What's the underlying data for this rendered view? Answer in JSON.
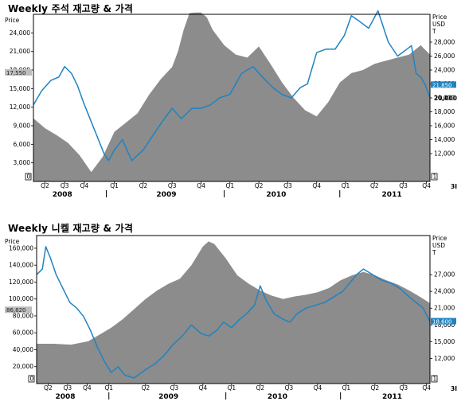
{
  "chart_data": [
    {
      "type": "area",
      "title": "Weekly 주석 재고량 & 가격",
      "left_axis_title": "Price",
      "right_axis_title": [
        "Price",
        "USD",
        "T"
      ],
      "left_ylim": [
        0,
        27000
      ],
      "left_ticks": [
        "3,000",
        "6,000",
        "9,000",
        "12,000",
        "15,000",
        "18,000",
        "21,000",
        "24,000"
      ],
      "left_tick_values": [
        3000,
        6000,
        9000,
        12000,
        15000,
        18000,
        21000,
        24000
      ],
      "right_ylim": [
        8000,
        32000
      ],
      "right_ticks": [
        "12,000",
        "14,000",
        "16,000",
        "18,000",
        "20,000",
        "22,000",
        "24,000",
        "26,000",
        "28,000"
      ],
      "right_tick_values": [
        12000,
        14000,
        16000,
        18000,
        20000,
        22000,
        24000,
        26000,
        28000
      ],
      "x_range": [
        2008.35,
        2011.78
      ],
      "quarter_ticks": [
        "Q2",
        "Q3",
        "Q4",
        "Q1",
        "Q2",
        "Q3",
        "Q4",
        "Q1",
        "Q2",
        "Q3",
        "Q4",
        "Q1",
        "Q2",
        "Q3",
        "Q4"
      ],
      "quarter_values": [
        2008.45,
        2008.62,
        2008.79,
        2009.05,
        2009.3,
        2009.55,
        2009.8,
        2010.05,
        2010.3,
        2010.55,
        2010.8,
        2011.05,
        2011.3,
        2011.55,
        2011.75
      ],
      "years": [
        "2008",
        "2009",
        "2010",
        "2011"
      ],
      "year_label_values": [
        2008.6,
        2009.5,
        2010.45,
        2011.45
      ],
      "year_divider_values": [
        2008.98,
        2010.0,
        2011.0
      ],
      "left_marker": "17,550",
      "left_marker_value": 17550,
      "right_marker": "21,850",
      "right_marker_value": 21850,
      "right_marker2": "20,000",
      "right_marker2_value": 20000,
      "stock_area": {
        "axis": "left",
        "color": "#8c8c8c",
        "x": [
          2008.35,
          2008.45,
          2008.55,
          2008.65,
          2008.75,
          2008.85,
          2008.95,
          2009.05,
          2009.15,
          2009.25,
          2009.35,
          2009.45,
          2009.55,
          2009.6,
          2009.65,
          2009.7,
          2009.75,
          2009.8,
          2009.85,
          2009.9,
          2010.0,
          2010.1,
          2010.2,
          2010.3,
          2010.4,
          2010.5,
          2010.6,
          2010.7,
          2010.8,
          2010.9,
          2011.0,
          2011.1,
          2011.2,
          2011.3,
          2011.4,
          2011.5,
          2011.6,
          2011.7,
          2011.78
        ],
        "values": [
          10200,
          8600,
          7500,
          6200,
          4200,
          1500,
          4000,
          8000,
          9500,
          11000,
          14000,
          16500,
          18500,
          21000,
          24500,
          27200,
          27300,
          27300,
          26500,
          24500,
          22000,
          20500,
          20000,
          21800,
          19000,
          16000,
          13500,
          11500,
          10500,
          12800,
          16000,
          17500,
          18000,
          19000,
          19500,
          20000,
          20500,
          22000,
          20500
        ]
      },
      "price_line": {
        "axis": "right",
        "color": "#1f83c2",
        "x": [
          2008.35,
          2008.42,
          2008.5,
          2008.57,
          2008.62,
          2008.68,
          2008.73,
          2008.78,
          2008.84,
          2008.9,
          2008.96,
          2009.0,
          2009.05,
          2009.12,
          2009.2,
          2009.3,
          2009.38,
          2009.46,
          2009.55,
          2009.63,
          2009.72,
          2009.8,
          2009.88,
          2009.96,
          2010.05,
          2010.15,
          2010.25,
          2010.33,
          2010.42,
          2010.5,
          2010.58,
          2010.66,
          2010.72,
          2010.8,
          2010.88,
          2010.96,
          2011.04,
          2011.1,
          2011.17,
          2011.25,
          2011.33,
          2011.42,
          2011.5,
          2011.58,
          2011.62,
          2011.66,
          2011.7,
          2011.74,
          2011.78
        ],
        "values": [
          19000,
          21000,
          22500,
          23000,
          24500,
          23500,
          21800,
          19500,
          17000,
          14500,
          12000,
          11000,
          12500,
          14000,
          11000,
          12500,
          14500,
          16500,
          18500,
          17000,
          18500,
          18500,
          19000,
          20000,
          20500,
          23500,
          24500,
          23000,
          21500,
          20500,
          20000,
          21500,
          22000,
          26500,
          27000,
          27000,
          29000,
          31800,
          31000,
          30000,
          32500,
          28000,
          26000,
          27000,
          27500,
          23500,
          23000,
          21850,
          20000
        ]
      }
    },
    {
      "type": "area",
      "title": "Weekly 니켈 재고량 & 가격",
      "left_axis_title": "Price",
      "right_axis_title": [
        "Price",
        "USD",
        "T"
      ],
      "left_ylim": [
        0,
        175000
      ],
      "left_ticks": [
        "20,000",
        "40,000",
        "60,000",
        "80,000",
        "100,000",
        "120,000",
        "140,000",
        "160,000"
      ],
      "left_tick_values": [
        20000,
        40000,
        60000,
        80000,
        100000,
        120000,
        140000,
        160000
      ],
      "right_ylim": [
        7500,
        34000
      ],
      "right_ticks": [
        "12,000",
        "15,000",
        "18,000",
        "21,000",
        "24,000",
        "27,000"
      ],
      "right_tick_values": [
        12000,
        15000,
        18000,
        21000,
        24000,
        27000
      ],
      "x_range": [
        2008.35,
        2011.78
      ],
      "quarter_ticks": [
        "Q2",
        "Q3",
        "Q4",
        "Q1",
        "Q2",
        "Q3",
        "Q4",
        "Q1",
        "Q2",
        "Q3",
        "Q4",
        "Q1",
        "Q2",
        "Q3",
        "Q4"
      ],
      "quarter_values": [
        2008.45,
        2008.62,
        2008.79,
        2008.98,
        2009.3,
        2009.55,
        2009.8,
        2010.05,
        2010.3,
        2010.55,
        2010.8,
        2011.05,
        2011.3,
        2011.55,
        2011.75
      ],
      "years": [
        "2008",
        "2009",
        "2010",
        "2011"
      ],
      "year_label_values": [
        2008.6,
        2009.5,
        2010.45,
        2011.45
      ],
      "year_divider_values": [
        2008.98,
        2010.0,
        2011.0
      ],
      "left_marker": "86,820",
      "left_marker_value": 86820,
      "right_marker": "18,600",
      "right_marker_value": 18600,
      "stock_area": {
        "axis": "left",
        "color": "#8c8c8c",
        "x": [
          2008.35,
          2008.5,
          2008.65,
          2008.8,
          2008.9,
          2009.0,
          2009.1,
          2009.2,
          2009.3,
          2009.4,
          2009.5,
          2009.6,
          2009.7,
          2009.8,
          2009.85,
          2009.9,
          2010.0,
          2010.1,
          2010.2,
          2010.3,
          2010.4,
          2010.5,
          2010.6,
          2010.7,
          2010.8,
          2010.9,
          2011.0,
          2011.1,
          2011.2,
          2011.3,
          2011.4,
          2011.5,
          2011.6,
          2011.7,
          2011.78
        ],
        "values": [
          47000,
          47000,
          46000,
          50000,
          58000,
          66000,
          76000,
          88000,
          100000,
          110000,
          118000,
          124000,
          140000,
          162000,
          168000,
          165000,
          148000,
          128000,
          118000,
          110000,
          104000,
          100000,
          103000,
          105000,
          108000,
          113000,
          122000,
          128000,
          132000,
          128000,
          122000,
          117000,
          110000,
          102000,
          95000
        ]
      },
      "price_line": {
        "axis": "right",
        "color": "#1f83c2",
        "x": [
          2008.35,
          2008.4,
          2008.43,
          2008.47,
          2008.52,
          2008.58,
          2008.64,
          2008.7,
          2008.76,
          2008.82,
          2008.88,
          2008.94,
          2009.0,
          2009.06,
          2009.12,
          2009.2,
          2009.3,
          2009.38,
          2009.46,
          2009.54,
          2009.62,
          2009.7,
          2009.78,
          2009.85,
          2009.92,
          2009.98,
          2010.05,
          2010.12,
          2010.18,
          2010.25,
          2010.3,
          2010.35,
          2010.42,
          2010.5,
          2010.56,
          2010.62,
          2010.7,
          2010.78,
          2010.86,
          2010.94,
          2011.02,
          2011.08,
          2011.14,
          2011.2,
          2011.28,
          2011.36,
          2011.44,
          2011.52,
          2011.6,
          2011.66,
          2011.72,
          2011.78
        ],
        "values": [
          27000,
          28000,
          32000,
          30000,
          27000,
          24500,
          22000,
          21000,
          19500,
          17000,
          14000,
          11500,
          9500,
          10500,
          9000,
          8500,
          10000,
          11000,
          12500,
          14500,
          16000,
          18000,
          16500,
          16000,
          17000,
          18500,
          17500,
          19000,
          20000,
          21500,
          25000,
          22500,
          20000,
          19000,
          18500,
          20000,
          21000,
          21500,
          22000,
          23000,
          24000,
          25500,
          27000,
          28000,
          27000,
          26000,
          25500,
          24500,
          23000,
          22000,
          21000,
          18600
        ]
      }
    }
  ],
  "corner_labels": {
    "p1_bottom_left": "0",
    "p1_bottom_right": "1",
    "p1_orange": "3I",
    "p2_bottom_left": "0",
    "p2_bottom_right": "1",
    "p2_orange": "3I"
  }
}
